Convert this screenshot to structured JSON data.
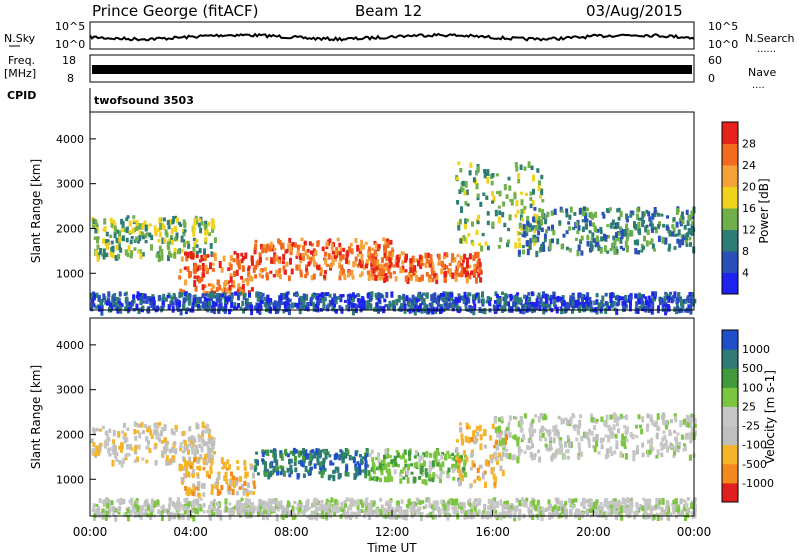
{
  "header": {
    "station": "Prince George (fitACF)",
    "beam": "Beam 12",
    "date": "03/Aug/2015"
  },
  "side_labels": {
    "nsky": "N.Sky",
    "freq_line1": "Freq.",
    "freq_line2": "[MHz]",
    "cpid": "CPID",
    "nsearch": "N.Search",
    "nave": "Nave",
    "dots": "......",
    "dots_short": "...."
  },
  "cpid_text": "twofsound 3503",
  "noise_axis": {
    "top": "10^5",
    "bottom": "10^0",
    "right_top": "10^5",
    "right_bottom": "10^0"
  },
  "freq_axis": {
    "left_ticks": [
      "18",
      "8"
    ],
    "right_ticks": [
      "60",
      "0"
    ]
  },
  "colors": {
    "power_scale": [
      "#1e22f0",
      "#2a4fb8",
      "#2e7d74",
      "#6fb04a",
      "#f2d31c",
      "#f5a23a",
      "#f26b1e",
      "#e6221a"
    ],
    "velocity_scale": [
      "#1f4fc9",
      "#2e7a76",
      "#3f9a3c",
      "#7cc63f",
      "#c7c7c7",
      "#bfbfbf",
      "#f5b52a",
      "#f28a1e",
      "#e02020"
    ]
  },
  "chart_data": [
    {
      "type": "heatmap",
      "title": "Power",
      "ylabel": "Slant Range [km]",
      "ylim": [
        180,
        4600
      ],
      "yticks": [
        "1000",
        "2000",
        "3000",
        "4000"
      ],
      "colorbar": {
        "label": "Power [dB]",
        "ticks": [
          "4",
          "8",
          "12",
          "16",
          "20",
          "24",
          "28"
        ],
        "range": [
          0,
          32
        ]
      },
      "bands": [
        {
          "t": [
            0,
            5
          ],
          "r": [
            1400,
            2300
          ],
          "level": 14
        },
        {
          "t": [
            3.5,
            6.5
          ],
          "r": [
            600,
            1500
          ],
          "level": 27
        },
        {
          "t": [
            6.5,
            12
          ],
          "r": [
            950,
            1800
          ],
          "level": 28
        },
        {
          "t": [
            11,
            15.5
          ],
          "r": [
            900,
            1500
          ],
          "level": 29
        },
        {
          "t": [
            14.5,
            18
          ],
          "r": [
            1600,
            3500
          ],
          "level": 15
        },
        {
          "t": [
            17,
            24
          ],
          "r": [
            1500,
            2500
          ],
          "level": 12
        },
        {
          "t": [
            0,
            24
          ],
          "r": [
            200,
            600
          ],
          "level": 8
        }
      ]
    },
    {
      "type": "heatmap",
      "title": "Velocity",
      "ylabel": "Slant Range [km]",
      "ylim": [
        180,
        4600
      ],
      "yticks": [
        "1000",
        "2000",
        "3000",
        "4000"
      ],
      "xlabel": "Time UT",
      "xticks": [
        "00:00",
        "04:00",
        "08:00",
        "12:00",
        "16:00",
        "20:00",
        "00:00"
      ],
      "colorbar": {
        "label": "Velocity [m s-1]",
        "ticks": [
          "1000",
          "500",
          "100",
          "25",
          "-25",
          "-100",
          "-500",
          "-1000"
        ]
      },
      "bands": [
        {
          "t": [
            0,
            5
          ],
          "r": [
            1400,
            2300
          ],
          "level": "-25"
        },
        {
          "t": [
            3.5,
            6.5
          ],
          "r": [
            700,
            1500
          ],
          "level": "-100"
        },
        {
          "t": [
            6.5,
            11
          ],
          "r": [
            1100,
            1700
          ],
          "level": "500"
        },
        {
          "t": [
            11,
            15
          ],
          "r": [
            1000,
            1700
          ],
          "level": "100"
        },
        {
          "t": [
            14.5,
            16.5
          ],
          "r": [
            900,
            2300
          ],
          "level": "-100"
        },
        {
          "t": [
            16,
            24
          ],
          "r": [
            1500,
            2500
          ],
          "level": "25"
        },
        {
          "t": [
            0,
            24
          ],
          "r": [
            200,
            600
          ],
          "level": "25"
        }
      ]
    }
  ]
}
